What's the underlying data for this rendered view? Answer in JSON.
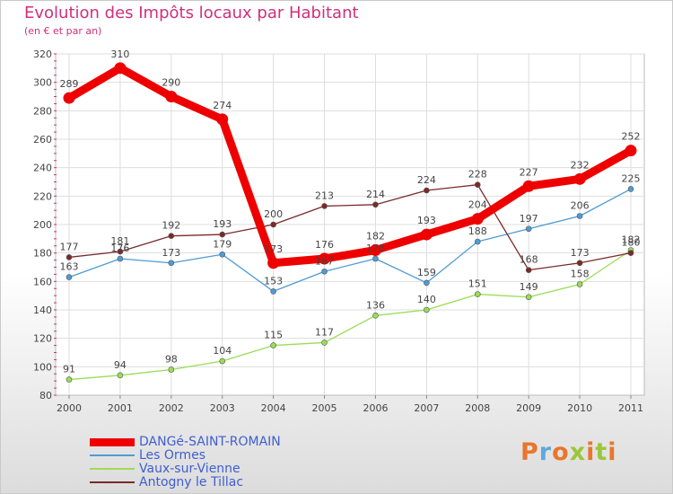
{
  "title": "Evolution des Impôts locaux par Habitant",
  "subtitle": "(en € et par an)",
  "brand": {
    "name": "Proxiti",
    "colors": [
      "#e8762c",
      "#5ea9dd",
      "#9cc63a"
    ]
  },
  "chart_data": {
    "type": "line",
    "title": "Evolution des Impôts locaux par Habitant",
    "subtitle": "(en € et par an)",
    "xlabel": "",
    "ylabel": "",
    "ylim": [
      80,
      320
    ],
    "yticks": [
      80,
      100,
      120,
      140,
      160,
      180,
      200,
      220,
      240,
      260,
      280,
      300,
      320
    ],
    "grid": true,
    "legend_position": "bottom-left",
    "categories": [
      "2000",
      "2001",
      "2002",
      "2003",
      "2004",
      "2005",
      "2006",
      "2007",
      "2008",
      "2009",
      "2010",
      "2011"
    ],
    "series": [
      {
        "name": "DANGé-SAINT-ROMAIN",
        "color": "#ee0000",
        "emphasis": true,
        "values": [
          289,
          310,
          290,
          274,
          173,
          176,
          182,
          193,
          204,
          227,
          232,
          252
        ]
      },
      {
        "name": "Les Ormes",
        "color": "#4f9bd3",
        "emphasis": false,
        "values": [
          163,
          176,
          173,
          179,
          153,
          167,
          176,
          159,
          188,
          197,
          206,
          225
        ]
      },
      {
        "name": "Vaux-sur-Vienne",
        "color": "#99dd55",
        "emphasis": false,
        "values": [
          91,
          94,
          98,
          104,
          115,
          117,
          136,
          140,
          151,
          149,
          158,
          182
        ]
      },
      {
        "name": "Antogny le Tillac",
        "color": "#7a2a2a",
        "emphasis": false,
        "values": [
          177,
          181,
          192,
          193,
          200,
          213,
          214,
          224,
          228,
          168,
          173,
          180
        ]
      }
    ]
  }
}
